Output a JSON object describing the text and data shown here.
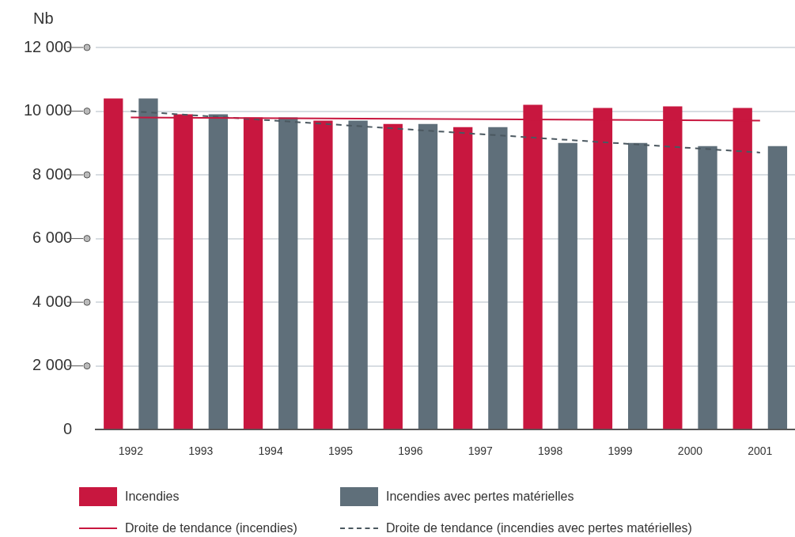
{
  "chart_data": {
    "type": "bar",
    "ylabel": "Nb",
    "categories": [
      "1992",
      "1993",
      "1994",
      "1995",
      "1996",
      "1997",
      "1998",
      "1999",
      "2000",
      "2001"
    ],
    "series": [
      {
        "name": "Incendies",
        "color": "#c8173f",
        "values": [
          10400,
          9900,
          9800,
          9700,
          9600,
          9500,
          10200,
          10100,
          10150,
          10100
        ]
      },
      {
        "name": "Incendies avec pertes matérielles",
        "color": "#5f6f7a",
        "values": [
          10400,
          9900,
          9800,
          9700,
          9600,
          9500,
          9000,
          9000,
          8900,
          8900
        ]
      },
      {
        "name": "Droite de tendance (incendies)",
        "type": "line",
        "color": "#c8173f",
        "line_style": "solid",
        "values": [
          9800,
          null,
          null,
          null,
          null,
          null,
          null,
          null,
          null,
          9700
        ]
      },
      {
        "name": "Droite de tendance (incendies avec pertes matérielles)",
        "type": "line",
        "color": "#4b5860",
        "line_style": "dashed",
        "values": [
          10000,
          null,
          null,
          null,
          null,
          null,
          null,
          null,
          null,
          8700
        ]
      }
    ],
    "ylim": [
      0,
      12000
    ],
    "yticks": [
      0,
      {
        "value": 2000,
        "label": "2 000"
      },
      {
        "value": 4000,
        "label": "4 000"
      },
      {
        "value": 6000,
        "label": "6 000"
      },
      {
        "value": 8000,
        "label": "8 000"
      },
      {
        "value": 10000,
        "label": "10 000"
      },
      {
        "value": 12000,
        "label": "12 000"
      }
    ],
    "grid": "y",
    "legend": "bottom",
    "marker": "none"
  }
}
